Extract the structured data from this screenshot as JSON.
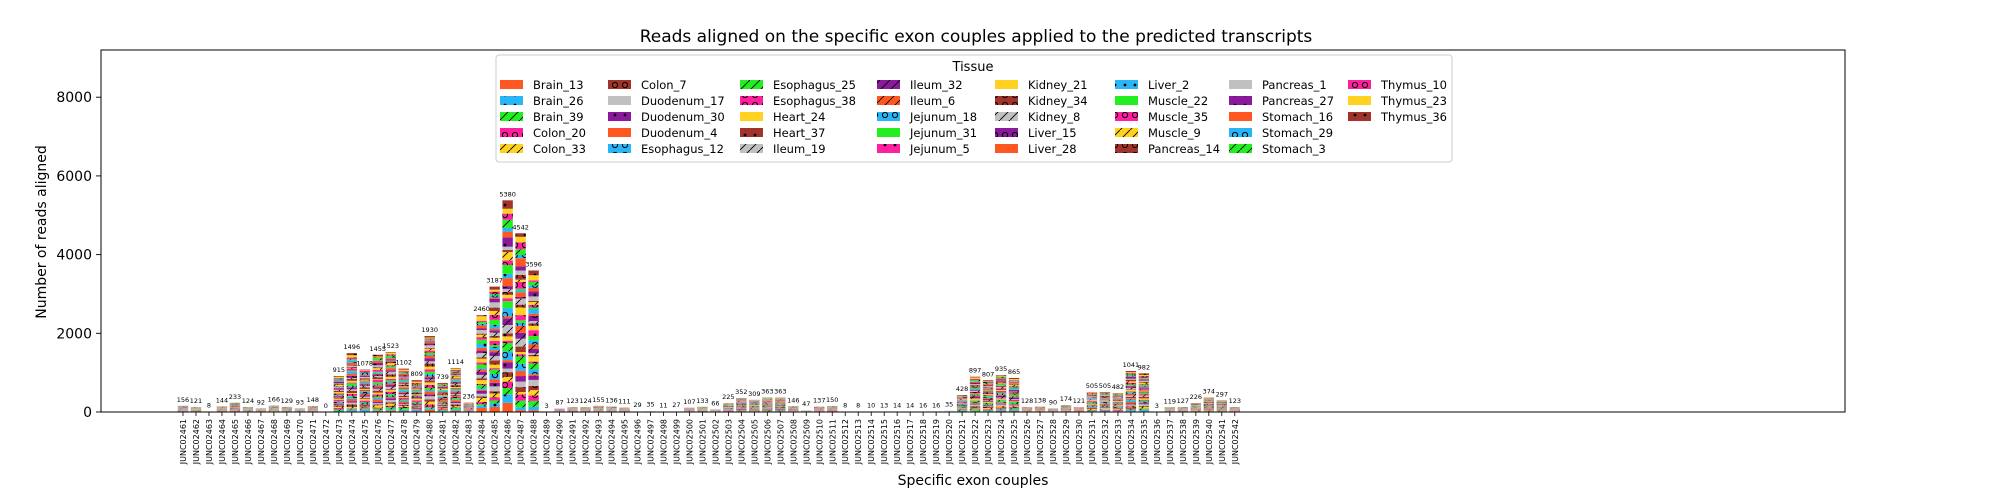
{
  "chart_data": {
    "type": "bar",
    "stacked": true,
    "title": "Reads aligned on the specific exon couples applied to the predicted transcripts",
    "xlabel": "Specific exon couples",
    "ylabel": "Number of reads aligned",
    "ylim": [
      0,
      9200
    ],
    "yticks": [
      0,
      2000,
      4000,
      6000,
      8000
    ],
    "grid": false,
    "legend": {
      "title": "Tissue",
      "placement": "top-center",
      "columns": 8,
      "entries": [
        {
          "name": "Brain_13",
          "color": "#ff5722",
          "pattern": "solid"
        },
        {
          "name": "Brain_26",
          "color": "#29b6f6",
          "pattern": "dot"
        },
        {
          "name": "Brain_39",
          "color": "#22ee22",
          "pattern": "slash"
        },
        {
          "name": "Colon_20",
          "color": "#ff1f9f",
          "pattern": "ring"
        },
        {
          "name": "Colon_33",
          "color": "#ffd21f",
          "pattern": "slash"
        },
        {
          "name": "Colon_7",
          "color": "#a0342b",
          "pattern": "ring"
        },
        {
          "name": "Duodenum_17",
          "color": "#c0c0c0",
          "pattern": "solid"
        },
        {
          "name": "Duodenum_30",
          "color": "#8a1a9b",
          "pattern": "dot"
        },
        {
          "name": "Duodenum_4",
          "color": "#ff5722",
          "pattern": "solid"
        },
        {
          "name": "Esophagus_12",
          "color": "#29b6f6",
          "pattern": "ring"
        },
        {
          "name": "Esophagus_25",
          "color": "#22ee22",
          "pattern": "slash"
        },
        {
          "name": "Esophagus_38",
          "color": "#ff1f9f",
          "pattern": "ring"
        },
        {
          "name": "Heart_24",
          "color": "#ffd21f",
          "pattern": "solid"
        },
        {
          "name": "Heart_37",
          "color": "#a0342b",
          "pattern": "dot"
        },
        {
          "name": "Ileum_19",
          "color": "#c0c0c0",
          "pattern": "slash"
        },
        {
          "name": "Ileum_32",
          "color": "#8a1a9b",
          "pattern": "slash"
        },
        {
          "name": "Ileum_6",
          "color": "#ff5722",
          "pattern": "slash"
        },
        {
          "name": "Jejunum_18",
          "color": "#29b6f6",
          "pattern": "ring"
        },
        {
          "name": "Jejunum_31",
          "color": "#22ee22",
          "pattern": "solid"
        },
        {
          "name": "Jejunum_5",
          "color": "#ff1f9f",
          "pattern": "dot"
        },
        {
          "name": "Kidney_21",
          "color": "#ffd21f",
          "pattern": "solid"
        },
        {
          "name": "Kidney_34",
          "color": "#a0342b",
          "pattern": "ring"
        },
        {
          "name": "Kidney_8",
          "color": "#c0c0c0",
          "pattern": "slash"
        },
        {
          "name": "Liver_15",
          "color": "#8a1a9b",
          "pattern": "ring"
        },
        {
          "name": "Liver_28",
          "color": "#ff5722",
          "pattern": "solid"
        },
        {
          "name": "Liver_2",
          "color": "#29b6f6",
          "pattern": "dot"
        },
        {
          "name": "Muscle_22",
          "color": "#22ee22",
          "pattern": "solid"
        },
        {
          "name": "Muscle_35",
          "color": "#ff1f9f",
          "pattern": "ring"
        },
        {
          "name": "Muscle_9",
          "color": "#ffd21f",
          "pattern": "slash"
        },
        {
          "name": "Pancreas_14",
          "color": "#a0342b",
          "pattern": "ring"
        },
        {
          "name": "Pancreas_1",
          "color": "#c0c0c0",
          "pattern": "solid"
        },
        {
          "name": "Pancreas_27",
          "color": "#8a1a9b",
          "pattern": "dot"
        },
        {
          "name": "Stomach_16",
          "color": "#ff5722",
          "pattern": "solid"
        },
        {
          "name": "Stomach_29",
          "color": "#29b6f6",
          "pattern": "ring"
        },
        {
          "name": "Stomach_3",
          "color": "#22ee22",
          "pattern": "slash"
        },
        {
          "name": "Thymus_10",
          "color": "#ff1f9f",
          "pattern": "ring"
        },
        {
          "name": "Thymus_23",
          "color": "#ffd21f",
          "pattern": "solid"
        },
        {
          "name": "Thymus_36",
          "color": "#a0342b",
          "pattern": "dot"
        }
      ]
    },
    "categories": [
      "JUNC02461",
      "JUNC02462",
      "JUNC02463",
      "JUNC02464",
      "JUNC02465",
      "JUNC02466",
      "JUNC02467",
      "JUNC02468",
      "JUNC02469",
      "JUNC02470",
      "JUNC02471",
      "JUNC02472",
      "JUNC02473",
      "JUNC02474",
      "JUNC02475",
      "JUNC02476",
      "JUNC02477",
      "JUNC02478",
      "JUNC02479",
      "JUNC02480",
      "JUNC02481",
      "JUNC02482",
      "JUNC02483",
      "JUNC02484",
      "JUNC02485",
      "JUNC02486",
      "JUNC02487",
      "JUNC02488",
      "JUNC02489",
      "JUNC02490",
      "JUNC02491",
      "JUNC02492",
      "JUNC02493",
      "JUNC02494",
      "JUNC02495",
      "JUNC02496",
      "JUNC02497",
      "JUNC02498",
      "JUNC02499",
      "JUNC02500",
      "JUNC02501",
      "JUNC02502",
      "JUNC02503",
      "JUNC02504",
      "JUNC02505",
      "JUNC02506",
      "JUNC02507",
      "JUNC02508",
      "JUNC02509",
      "JUNC02510",
      "JUNC02511",
      "JUNC02512",
      "JUNC02513",
      "JUNC02514",
      "JUNC02515",
      "JUNC02516",
      "JUNC02517",
      "JUNC02518",
      "JUNC02519",
      "JUNC02520",
      "JUNC02521",
      "JUNC02522",
      "JUNC02523",
      "JUNC02524",
      "JUNC02525",
      "JUNC02526",
      "JUNC02527",
      "JUNC02528",
      "JUNC02529",
      "JUNC02530",
      "JUNC02531",
      "JUNC02532",
      "JUNC02533",
      "JUNC02534",
      "JUNC02535",
      "JUNC02536",
      "JUNC02537",
      "JUNC02538",
      "JUNC02539",
      "JUNC02540",
      "JUNC02541",
      "JUNC02542"
    ],
    "totals": [
      156,
      121,
      8,
      144,
      233,
      124,
      92,
      166,
      129,
      93,
      148,
      0,
      915,
      1496,
      1078,
      1455,
      1523,
      1102,
      809,
      1930,
      739,
      1114,
      236,
      2460,
      3187,
      5380,
      4542,
      3596,
      3,
      87,
      123,
      124,
      155,
      136,
      111,
      29,
      35,
      11,
      27,
      107,
      133,
      66,
      225,
      352,
      309,
      363,
      363,
      146,
      47,
      137,
      150,
      8,
      8,
      10,
      13,
      14,
      14,
      16,
      16,
      35,
      428,
      897,
      807,
      935,
      865,
      128,
      138,
      90,
      174,
      121,
      505,
      505,
      482,
      1041,
      982,
      3,
      119,
      127,
      226,
      374,
      297,
      123
    ]
  }
}
